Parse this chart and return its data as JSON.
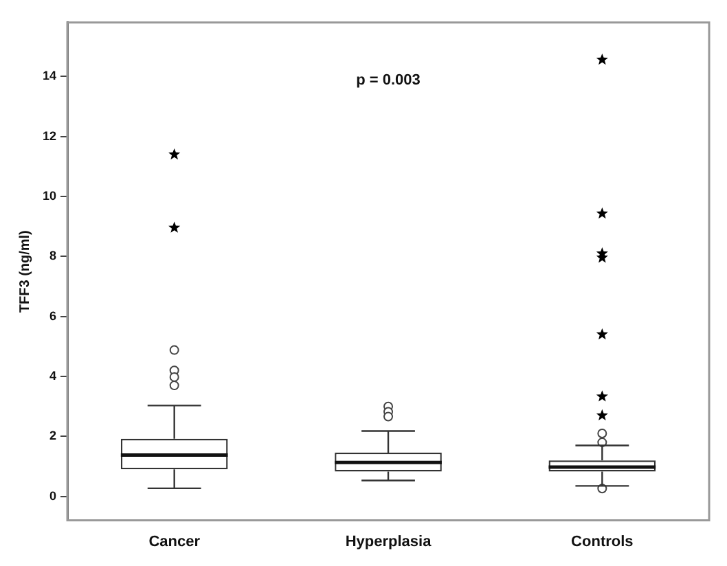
{
  "chart_data": {
    "type": "box",
    "ylabel": "TFF3 (ng/ml)",
    "annotations": [
      "p = 0.003"
    ],
    "categories": [
      "Cancer",
      "Hyperplasia",
      "Controls"
    ],
    "boxes": [
      {
        "low": 0.27,
        "q1": 0.9,
        "median": 1.38,
        "q3": 1.92,
        "high": 3.03,
        "outliers": [
          4.88,
          4.2,
          3.98,
          3.7
        ]
      },
      {
        "low": 0.53,
        "q1": 0.83,
        "median": 1.13,
        "q3": 1.46,
        "high": 2.18,
        "outliers": [
          3.0,
          2.82,
          2.66
        ]
      },
      {
        "low": 0.35,
        "q1": 0.83,
        "median": 0.98,
        "q3": 1.2,
        "high": 1.7,
        "outliers": [
          2.1,
          1.8,
          0.26
        ]
      }
    ],
    "series": [
      {
        "type": "scatter",
        "marker": "star",
        "color": "#000000",
        "x": [
          "Cancer",
          "Cancer",
          "Controls",
          "Controls",
          "Controls",
          "Controls",
          "Controls",
          "Controls",
          "Controls"
        ],
        "values": [
          11.4,
          8.96,
          14.56,
          9.43,
          8.1,
          7.96,
          5.4,
          3.33,
          2.7
        ]
      }
    ],
    "ylim": [
      -0.8,
      15.8
    ],
    "yticks": [
      0,
      2,
      4,
      6,
      8,
      10,
      12,
      14
    ],
    "grid": false,
    "legend": false
  }
}
